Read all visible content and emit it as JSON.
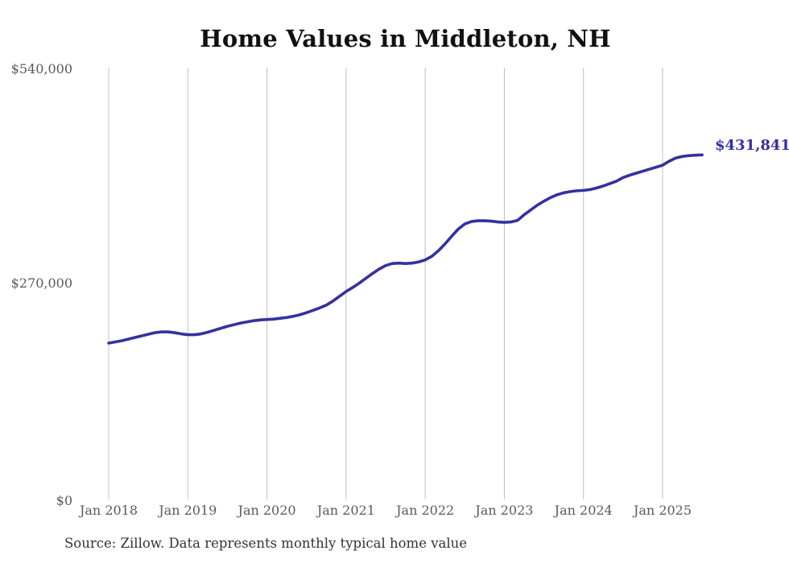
{
  "title": "Home Values in Middleton, NH",
  "y_axis": {
    "labels": [
      "$540,000",
      "$270,000",
      "$0"
    ]
  },
  "x_axis": {
    "labels": [
      "Jan 2018",
      "Jan 2019",
      "Jan 2020",
      "Jan 2021",
      "Jan 2022",
      "Jan 2023",
      "Jan 2024",
      "Jan 2025"
    ]
  },
  "end_label": "$431,841",
  "source_note": "Source: Zillow. Data represents monthly typical home value",
  "colors": {
    "line": "#3431a0",
    "gridline": "#c0c0c0",
    "tick_label": "#5a5a5a",
    "title": "#111111",
    "source": "#333333"
  },
  "chart_data": {
    "type": "line",
    "title": "Home Values in Middleton, NH",
    "series_name": "Monthly typical home value",
    "unit": "USD",
    "frequency": "monthly",
    "start_month": "2018-01",
    "end_month": "2025-07",
    "x_tick_labels": [
      "Jan 2018",
      "Jan 2019",
      "Jan 2020",
      "Jan 2021",
      "Jan 2022",
      "Jan 2023",
      "Jan 2024",
      "Jan 2025"
    ],
    "y_ticks": [
      0,
      270000,
      540000
    ],
    "ylim": [
      0,
      540000
    ],
    "grid": "vertical-only",
    "legend": "none",
    "last_value": 431841,
    "last_value_label": "$431,841",
    "values": [
      196500,
      198000,
      199500,
      201500,
      203500,
      205500,
      207500,
      209500,
      210500,
      210500,
      209500,
      208000,
      207000,
      207000,
      208000,
      210000,
      212500,
      215000,
      217500,
      219500,
      221500,
      223000,
      224500,
      225500,
      226000,
      226500,
      227500,
      228500,
      230000,
      232000,
      234500,
      237500,
      240500,
      244000,
      249000,
      255000,
      261000,
      266000,
      271500,
      277500,
      283500,
      289000,
      293500,
      296000,
      296500,
      296000,
      296500,
      298000,
      300500,
      305000,
      312000,
      320500,
      330000,
      339000,
      345500,
      348500,
      349500,
      349500,
      349000,
      348000,
      347500,
      348000,
      350000,
      357000,
      363000,
      369000,
      374000,
      378500,
      382000,
      384500,
      386000,
      387000,
      387500,
      388500,
      390500,
      393000,
      396000,
      399000,
      403500,
      406500,
      409000,
      411500,
      414000,
      416500,
      419000,
      424000,
      428000,
      430000,
      431000,
      431500,
      431841
    ]
  }
}
